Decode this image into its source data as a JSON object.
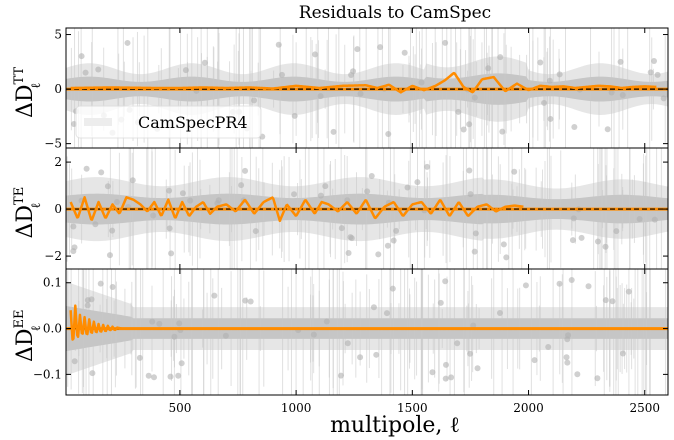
{
  "chart_data": {
    "type": "line",
    "title": "Residuals to CamSpec",
    "xlabel": "multipole, ℓ",
    "xlim": [
      10,
      2600
    ],
    "xticks": [
      500,
      1000,
      1500,
      2000,
      2500
    ],
    "xtick_labels": [
      "500",
      "1000",
      "1500",
      "2000",
      "2500"
    ],
    "legend": {
      "entries": [
        "CamSpecPR4"
      ],
      "placement": "lower-left of top panel"
    },
    "colors": {
      "curve": "#ff8c00",
      "zero_line": "#000000",
      "band_dark": "#b8b8b8",
      "band_light": "#e2e2e2",
      "points": "#b0b0b0"
    },
    "panels": [
      {
        "id": "TT",
        "ylabel_main": "ΔD",
        "ylabel_sup": "TT",
        "ylabel_sub": "ℓ",
        "ylim": [
          -5.4,
          5.6
        ],
        "yticks": [
          -5,
          0,
          5
        ],
        "ytick_labels": [
          "−5",
          "0",
          "5"
        ],
        "series": [
          {
            "name": "CamSpecPR4",
            "x": [
              30,
              200,
              400,
              500,
              600,
              700,
              800,
              900,
              1000,
              1100,
              1200,
              1300,
              1350,
              1400,
              1450,
              1500,
              1550,
              1600,
              1640,
              1680,
              1720,
              1760,
              1800,
              1850,
              1900,
              1950,
              2000,
              2050,
              2100,
              2150,
              2200,
              2250,
              2300,
              2350,
              2400,
              2450,
              2500,
              2550
            ],
            "y": [
              0.1,
              0.15,
              0.1,
              0.1,
              0.15,
              0.1,
              0.15,
              0.05,
              0.3,
              0.1,
              0.3,
              0.35,
              0.1,
              0.4,
              -0.3,
              0.3,
              -0.1,
              0.3,
              0.8,
              1.5,
              0.2,
              -0.3,
              0.9,
              1.1,
              -0.2,
              0.5,
              -0.1,
              0.3,
              0.2,
              0.25,
              0.1,
              0.2,
              0.3,
              0.25,
              0.1,
              0.2,
              0.25,
              0.2
            ]
          }
        ]
      },
      {
        "id": "TE",
        "ylabel_main": "ΔD",
        "ylabel_sup": "TE",
        "ylabel_sub": "ℓ",
        "ylim": [
          -2.55,
          2.6
        ],
        "yticks": [
          -2,
          0,
          2
        ],
        "ytick_labels": [
          "−2",
          "0",
          "2"
        ],
        "series": [
          {
            "name": "CamSpecPR4",
            "x": [
              30,
              60,
              90,
              120,
              150,
              180,
              210,
              240,
              270,
              300,
              330,
              360,
              390,
              420,
              450,
              480,
              510,
              540,
              570,
              600,
              630,
              660,
              700,
              740,
              780,
              820,
              860,
              900,
              930,
              960,
              1000,
              1040,
              1080,
              1110,
              1140,
              1180,
              1220,
              1260,
              1300,
              1340,
              1380,
              1420,
              1460,
              1500,
              1540,
              1580,
              1620,
              1660,
              1700,
              1740,
              1780,
              1820,
              1860,
              1900,
              1940,
              1980
            ],
            "y": [
              0.3,
              -0.4,
              0.5,
              -0.5,
              0.3,
              -0.4,
              0.2,
              -0.2,
              0.5,
              0.4,
              0.2,
              -0.1,
              0.3,
              -0.3,
              0.4,
              -0.4,
              0.3,
              -0.3,
              0.1,
              0.3,
              -0.2,
              0.1,
              0.2,
              -0.1,
              0.4,
              -0.2,
              0.3,
              0.5,
              -0.5,
              0.2,
              -0.3,
              0.4,
              -0.2,
              0.3,
              0.2,
              -0.1,
              0.3,
              -0.2,
              0.4,
              -0.4,
              0.1,
              0.3,
              -0.3,
              0.2,
              0.3,
              -0.2,
              0.4,
              -0.3,
              0.3,
              -0.3,
              0.1,
              0.2,
              -0.1,
              0.1,
              0.15,
              0.1
            ]
          }
        ]
      },
      {
        "id": "EE",
        "ylabel_main": "ΔD",
        "ylabel_sup": "EE",
        "ylabel_sub": "ℓ",
        "ylim": [
          -0.145,
          0.13
        ],
        "yticks": [
          -0.1,
          0.0,
          0.1
        ],
        "ytick_labels": [
          "−0.1",
          "0.0",
          "0.1"
        ],
        "series": [
          {
            "name": "CamSpecPR4",
            "x": [
              30,
              40,
              50,
              60,
              70,
              80,
              90,
              100,
              110,
              120,
              130,
              140,
              150,
              160,
              170,
              180,
              190,
              200,
              210,
              220,
              230,
              250,
              300,
              400,
              600,
              900,
              1200,
              1500,
              1800,
              2100,
              2400,
              2600
            ],
            "y": [
              0.04,
              -0.04,
              0.05,
              -0.03,
              0.03,
              -0.02,
              0.025,
              -0.02,
              0.02,
              -0.015,
              0.015,
              -0.012,
              0.01,
              -0.01,
              0.008,
              -0.008,
              0.006,
              -0.005,
              0.004,
              -0.004,
              0.002,
              0.0,
              0.0,
              0.0,
              0.0,
              0.0,
              0.0,
              0.0,
              0.0,
              0.0,
              0.0,
              0.0
            ]
          }
        ]
      }
    ]
  }
}
